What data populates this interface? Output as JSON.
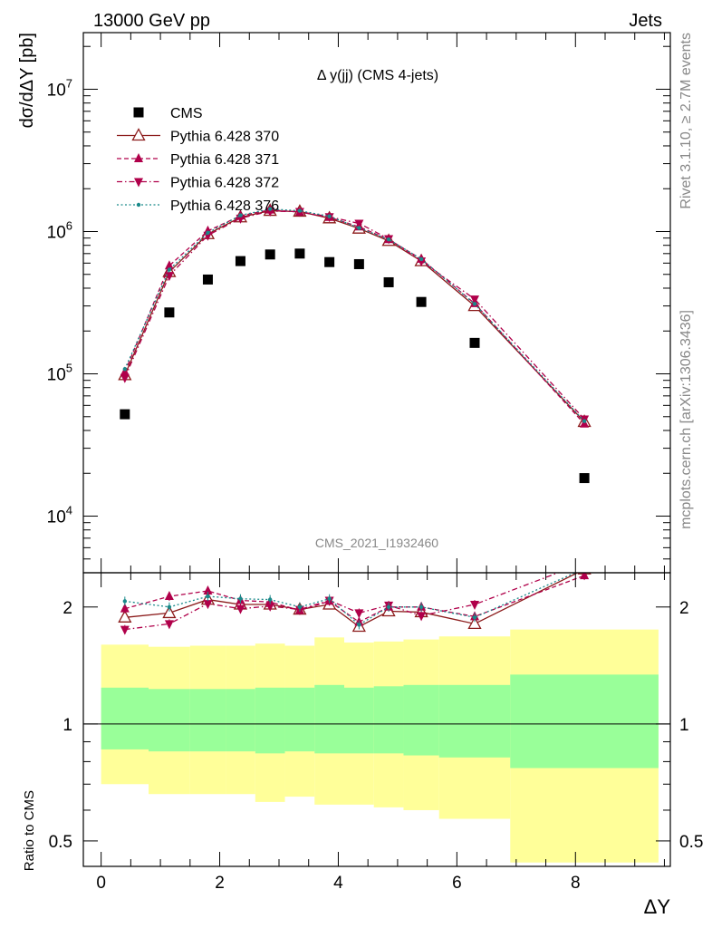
{
  "header": {
    "left": "13000 GeV pp",
    "right": "Jets",
    "side_top": "Rivet 3.1.10, ≥ 2.7M events",
    "side_bottom": "mcplots.cern.ch [arXiv:1306.3436]"
  },
  "chart_data": [
    {
      "type": "scatter",
      "panel": "main",
      "title": "Δ y(jj) (CMS 4-jets)",
      "watermark": "CMS_2021_I1932460",
      "ylabel": "dσ/dΔY [pb]",
      "yscale": "log",
      "ylim": [
        4000,
        25000000
      ],
      "xlim": [
        -0.3,
        9.6
      ],
      "ytick_labels": [
        "10^4",
        "10^5",
        "10^6",
        "10^7"
      ],
      "x": [
        0.4,
        1.15,
        1.8,
        2.35,
        2.85,
        3.35,
        3.85,
        4.35,
        4.85,
        5.4,
        6.3,
        8.15
      ],
      "legend_position": "top-left",
      "series": [
        {
          "name": "CMS",
          "color": "#000000",
          "marker": "square",
          "line": "none",
          "values": [
            52000,
            270000,
            460000,
            620000,
            690000,
            700000,
            610000,
            590000,
            440000,
            320000,
            165000,
            18500
          ]
        },
        {
          "name": "Pythia 6.428 370",
          "color": "#8b1a1a",
          "marker": "triangle-up-open",
          "line": "solid",
          "values": [
            98000,
            520000,
            960000,
            1260000,
            1400000,
            1380000,
            1240000,
            1050000,
            860000,
            620000,
            300000,
            46000
          ]
        },
        {
          "name": "Pythia 6.428 371",
          "color": "#b0004a",
          "marker": "triangle-up",
          "line": "dashed",
          "values": [
            103000,
            575000,
            1010000,
            1290000,
            1420000,
            1370000,
            1260000,
            1080000,
            880000,
            640000,
            312000,
            44500
          ]
        },
        {
          "name": "Pythia 6.428 372",
          "color": "#b0004a",
          "marker": "triangle-down",
          "line": "dashdot",
          "values": [
            94000,
            490000,
            940000,
            1240000,
            1390000,
            1380000,
            1270000,
            1140000,
            890000,
            620000,
            335000,
            48000
          ]
        },
        {
          "name": "Pythia 6.428 376",
          "color": "#1a8a8a",
          "marker": "dot",
          "line": "dotted",
          "values": [
            108000,
            540000,
            980000,
            1300000,
            1440000,
            1400000,
            1280000,
            1060000,
            880000,
            640000,
            310000,
            46500
          ]
        }
      ]
    },
    {
      "type": "line",
      "panel": "ratio",
      "ylabel": "Ratio to CMS",
      "xlabel": "ΔY",
      "yscale": "log",
      "ylim": [
        0.43,
        2.45
      ],
      "xlim": [
        -0.3,
        9.6
      ],
      "ytick_labels": [
        "0.5",
        "1",
        "2"
      ],
      "xtick_labels": [
        "0",
        "2",
        "4",
        "6",
        "8"
      ],
      "x": [
        0.4,
        1.15,
        1.8,
        2.35,
        2.85,
        3.35,
        3.85,
        4.35,
        4.85,
        5.4,
        6.3,
        8.15
      ],
      "series": [
        {
          "name": "Pythia 6.428 370",
          "values": [
            1.88,
            1.93,
            2.09,
            2.03,
            2.03,
            1.97,
            2.03,
            1.78,
            1.95,
            1.94,
            1.81,
            2.5
          ]
        },
        {
          "name": "Pythia 6.428 371",
          "values": [
            1.98,
            2.13,
            2.2,
            2.08,
            2.06,
            1.96,
            2.07,
            1.83,
            2.0,
            2.0,
            1.89,
            2.41
          ]
        },
        {
          "name": "Pythia 6.428 372",
          "values": [
            1.75,
            1.81,
            2.04,
            1.98,
            2.01,
            1.97,
            2.08,
            1.93,
            2.02,
            1.9,
            2.03,
            2.6
          ]
        },
        {
          "name": "Pythia 6.428 376",
          "values": [
            2.07,
            2.0,
            2.13,
            2.1,
            2.09,
            2.0,
            2.1,
            1.8,
            2.0,
            2.0,
            1.88,
            2.51
          ]
        }
      ],
      "bands": {
        "edges": [
          0.0,
          0.8,
          1.5,
          2.1,
          2.6,
          3.1,
          3.6,
          4.1,
          4.6,
          5.1,
          5.7,
          6.9,
          9.4
        ],
        "yellow_upper": [
          1.6,
          1.58,
          1.59,
          1.59,
          1.61,
          1.59,
          1.67,
          1.62,
          1.63,
          1.65,
          1.68,
          1.75
        ],
        "yellow_lower": [
          0.7,
          0.66,
          0.66,
          0.66,
          0.63,
          0.65,
          0.62,
          0.62,
          0.61,
          0.6,
          0.57,
          0.44
        ],
        "green_upper": [
          1.24,
          1.23,
          1.23,
          1.23,
          1.24,
          1.24,
          1.26,
          1.24,
          1.25,
          1.26,
          1.26,
          1.34
        ],
        "green_lower": [
          0.86,
          0.85,
          0.85,
          0.85,
          0.84,
          0.85,
          0.84,
          0.84,
          0.84,
          0.83,
          0.82,
          0.77
        ],
        "yellow_color": "#ffff99",
        "green_color": "#99ff99"
      }
    }
  ]
}
